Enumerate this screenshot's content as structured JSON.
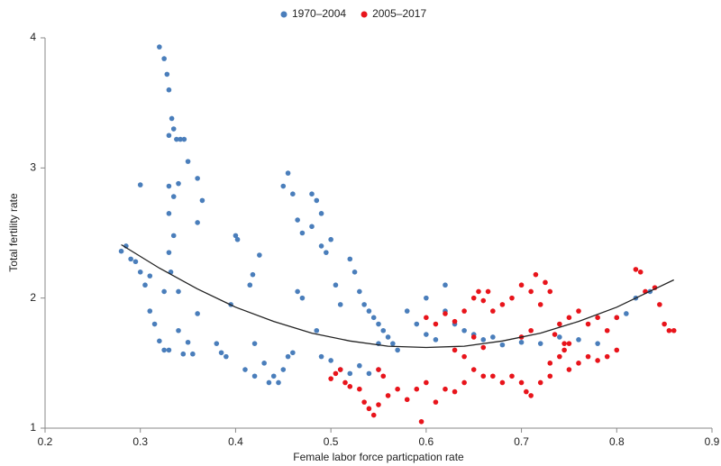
{
  "chart_data": {
    "type": "scatter",
    "xlabel": "Female labor force particpation rate",
    "ylabel": "Total fertility rate",
    "xlim": [
      0.2,
      0.9
    ],
    "ylim": [
      1,
      4
    ],
    "xticks": [
      0.2,
      0.3,
      0.4,
      0.5,
      0.6,
      0.7,
      0.8,
      0.9
    ],
    "yticks": [
      1,
      2,
      3,
      4
    ],
    "legend": "top",
    "series": [
      {
        "name": "1970–2004",
        "color": "#4a7ebb",
        "x": [
          0.28,
          0.285,
          0.29,
          0.295,
          0.3,
          0.3,
          0.305,
          0.31,
          0.31,
          0.315,
          0.32,
          0.325,
          0.33,
          0.32,
          0.325,
          0.328,
          0.33,
          0.333,
          0.335,
          0.33,
          0.338,
          0.342,
          0.346,
          0.35,
          0.33,
          0.335,
          0.33,
          0.335,
          0.33,
          0.332,
          0.325,
          0.34,
          0.36,
          0.365,
          0.36,
          0.34,
          0.345,
          0.35,
          0.355,
          0.34,
          0.36,
          0.38,
          0.385,
          0.39,
          0.395,
          0.4,
          0.402,
          0.41,
          0.42,
          0.415,
          0.418,
          0.42,
          0.425,
          0.43,
          0.435,
          0.44,
          0.445,
          0.45,
          0.455,
          0.46,
          0.455,
          0.45,
          0.46,
          0.465,
          0.47,
          0.465,
          0.47,
          0.48,
          0.485,
          0.49,
          0.48,
          0.49,
          0.5,
          0.495,
          0.485,
          0.49,
          0.5,
          0.51,
          0.505,
          0.51,
          0.52,
          0.525,
          0.53,
          0.535,
          0.54,
          0.545,
          0.55,
          0.555,
          0.56,
          0.565,
          0.57,
          0.58,
          0.59,
          0.6,
          0.61,
          0.62,
          0.63,
          0.64,
          0.65,
          0.66,
          0.67,
          0.68,
          0.7,
          0.72,
          0.74,
          0.76,
          0.78,
          0.8,
          0.81,
          0.82,
          0.835,
          0.52,
          0.53,
          0.54,
          0.55,
          0.62,
          0.6,
          0.55
        ],
        "values": [
          2.36,
          2.4,
          2.3,
          2.28,
          2.87,
          2.2,
          2.1,
          2.17,
          1.9,
          1.8,
          1.67,
          1.6,
          1.6,
          3.93,
          3.84,
          3.72,
          3.6,
          3.38,
          3.3,
          3.25,
          3.22,
          3.22,
          3.22,
          3.05,
          2.86,
          2.78,
          2.65,
          2.48,
          2.35,
          2.2,
          2.05,
          2.88,
          2.92,
          2.75,
          2.58,
          1.75,
          1.57,
          1.66,
          1.57,
          2.05,
          1.88,
          1.65,
          1.58,
          1.55,
          1.95,
          2.48,
          2.45,
          1.45,
          1.4,
          2.1,
          2.18,
          1.65,
          2.33,
          1.5,
          1.35,
          1.4,
          1.35,
          1.45,
          1.55,
          1.58,
          2.96,
          2.86,
          2.8,
          2.6,
          2.5,
          2.05,
          2.0,
          2.8,
          2.75,
          2.65,
          2.55,
          2.4,
          2.45,
          2.35,
          1.75,
          1.55,
          1.52,
          1.45,
          2.1,
          1.95,
          2.3,
          2.2,
          2.05,
          1.95,
          1.9,
          1.85,
          1.8,
          1.75,
          1.7,
          1.65,
          1.6,
          1.9,
          1.8,
          1.72,
          1.68,
          1.9,
          1.8,
          1.75,
          1.72,
          1.68,
          1.7,
          1.64,
          1.66,
          1.65,
          1.7,
          1.68,
          1.65,
          1.85,
          1.88,
          2.0,
          2.05,
          1.42,
          1.48,
          1.42,
          1.45,
          2.1,
          2.0,
          1.65
        ]
      },
      {
        "name": "2005–2017",
        "color": "#e8141b",
        "x": [
          0.5,
          0.505,
          0.51,
          0.515,
          0.52,
          0.53,
          0.535,
          0.54,
          0.545,
          0.55,
          0.555,
          0.56,
          0.57,
          0.58,
          0.59,
          0.595,
          0.6,
          0.61,
          0.62,
          0.63,
          0.64,
          0.65,
          0.6,
          0.61,
          0.62,
          0.63,
          0.64,
          0.65,
          0.655,
          0.66,
          0.665,
          0.67,
          0.68,
          0.69,
          0.7,
          0.71,
          0.72,
          0.73,
          0.74,
          0.75,
          0.76,
          0.77,
          0.78,
          0.79,
          0.67,
          0.68,
          0.69,
          0.7,
          0.705,
          0.71,
          0.72,
          0.73,
          0.74,
          0.745,
          0.75,
          0.76,
          0.77,
          0.78,
          0.79,
          0.8,
          0.8,
          0.82,
          0.825,
          0.83,
          0.84,
          0.845,
          0.85,
          0.855,
          0.86,
          0.715,
          0.725,
          0.735,
          0.745,
          0.63,
          0.64,
          0.65,
          0.66,
          0.7,
          0.71,
          0.66,
          0.73,
          0.75,
          0.55
        ],
        "values": [
          1.38,
          1.42,
          1.45,
          1.35,
          1.32,
          1.3,
          1.2,
          1.15,
          1.1,
          1.18,
          1.4,
          1.25,
          1.3,
          1.22,
          1.3,
          1.05,
          1.35,
          1.2,
          1.3,
          1.28,
          1.35,
          1.45,
          1.85,
          1.8,
          1.88,
          1.82,
          1.9,
          2.0,
          2.05,
          1.98,
          2.05,
          1.9,
          1.95,
          2.0,
          2.1,
          2.05,
          1.95,
          2.05,
          1.8,
          1.85,
          1.9,
          1.8,
          1.85,
          1.75,
          1.4,
          1.35,
          1.4,
          1.35,
          1.28,
          1.25,
          1.35,
          1.4,
          1.55,
          1.6,
          1.65,
          1.5,
          1.55,
          1.52,
          1.55,
          1.6,
          1.85,
          2.22,
          2.2,
          2.05,
          2.08,
          1.95,
          1.8,
          1.75,
          1.75,
          2.18,
          2.12,
          1.72,
          1.65,
          1.6,
          1.55,
          1.7,
          1.62,
          1.7,
          1.75,
          1.4,
          1.5,
          1.45,
          1.45
        ]
      }
    ],
    "trend": {
      "color": "#222222",
      "x": [
        0.28,
        0.32,
        0.36,
        0.4,
        0.44,
        0.48,
        0.52,
        0.56,
        0.6,
        0.64,
        0.68,
        0.72,
        0.76,
        0.8,
        0.84,
        0.86
      ],
      "values": [
        2.41,
        2.23,
        2.07,
        1.93,
        1.82,
        1.73,
        1.67,
        1.63,
        1.62,
        1.63,
        1.67,
        1.73,
        1.82,
        1.93,
        2.07,
        2.14
      ]
    }
  }
}
